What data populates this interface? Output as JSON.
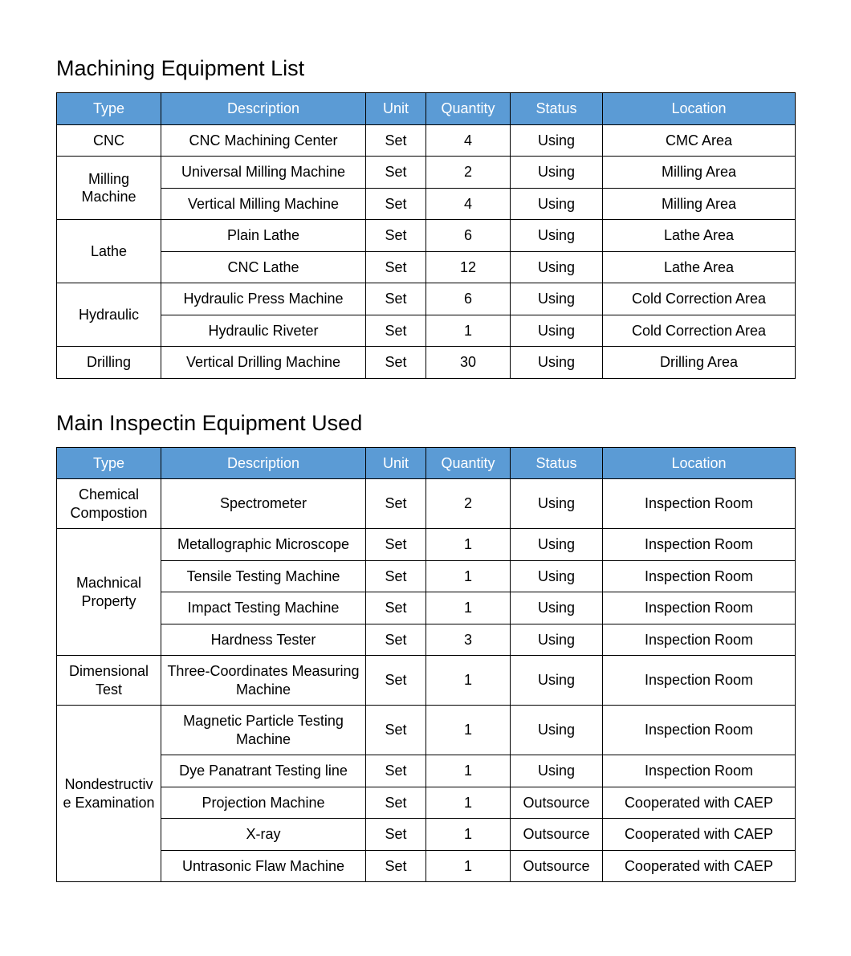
{
  "colors": {
    "header_bg": "#5b9bd5",
    "header_text": "#ffffff",
    "body_text": "#000000",
    "border": "#000000",
    "page_bg": "#ffffff"
  },
  "columns": [
    {
      "key": "type",
      "label": "Type"
    },
    {
      "key": "description",
      "label": "Description"
    },
    {
      "key": "unit",
      "label": "Unit"
    },
    {
      "key": "quantity",
      "label": "Quantity"
    },
    {
      "key": "status",
      "label": "Status"
    },
    {
      "key": "location",
      "label": "Location"
    }
  ],
  "sections": [
    {
      "title": "Machining Equipment List",
      "groups": [
        {
          "type": "CNC",
          "rows": [
            {
              "description": "CNC Machining Center",
              "unit": "Set",
              "quantity": "4",
              "status": "Using",
              "location": "CMC Area"
            }
          ]
        },
        {
          "type": "Milling Machine",
          "rows": [
            {
              "description": "Universal Milling Machine",
              "unit": "Set",
              "quantity": "2",
              "status": "Using",
              "location": "Milling Area"
            },
            {
              "description": "Vertical Milling Machine",
              "unit": "Set",
              "quantity": "4",
              "status": "Using",
              "location": "Milling Area"
            }
          ]
        },
        {
          "type": "Lathe",
          "rows": [
            {
              "description": "Plain Lathe",
              "unit": "Set",
              "quantity": "6",
              "status": "Using",
              "location": "Lathe Area"
            },
            {
              "description": "CNC Lathe",
              "unit": "Set",
              "quantity": "12",
              "status": "Using",
              "location": "Lathe Area"
            }
          ]
        },
        {
          "type": "Hydraulic",
          "rows": [
            {
              "description": "Hydraulic Press Machine",
              "unit": "Set",
              "quantity": "6",
              "status": "Using",
              "location": "Cold Correction Area"
            },
            {
              "description": "Hydraulic Riveter",
              "unit": "Set",
              "quantity": "1",
              "status": "Using",
              "location": "Cold Correction Area"
            }
          ]
        },
        {
          "type": "Drilling",
          "rows": [
            {
              "description": "Vertical Drilling Machine",
              "unit": "Set",
              "quantity": "30",
              "status": "Using",
              "location": "Drilling Area"
            }
          ]
        }
      ]
    },
    {
      "title": "Main Inspectin Equipment Used",
      "groups": [
        {
          "type": "Chemical Compostion",
          "rows": [
            {
              "description": "Spectrometer",
              "unit": "Set",
              "quantity": "2",
              "status": "Using",
              "location": "Inspection Room"
            }
          ]
        },
        {
          "type": "Machnical Property",
          "rows": [
            {
              "description": "Metallographic Microscope",
              "unit": "Set",
              "quantity": "1",
              "status": "Using",
              "location": "Inspection Room"
            },
            {
              "description": "Tensile Testing Machine",
              "unit": "Set",
              "quantity": "1",
              "status": "Using",
              "location": "Inspection Room"
            },
            {
              "description": "Impact Testing Machine",
              "unit": "Set",
              "quantity": "1",
              "status": "Using",
              "location": "Inspection Room"
            },
            {
              "description": "Hardness Tester",
              "unit": "Set",
              "quantity": "3",
              "status": "Using",
              "location": "Inspection Room"
            }
          ]
        },
        {
          "type": "Dimensional Test",
          "rows": [
            {
              "description": "Three-Coordinates Measuring Machine",
              "unit": "Set",
              "quantity": "1",
              "status": "Using",
              "location": "Inspection Room"
            }
          ]
        },
        {
          "type": "Nondestructive Examination",
          "rows": [
            {
              "description": "Magnetic Particle Testing Machine",
              "unit": "Set",
              "quantity": "1",
              "status": "Using",
              "location": "Inspection Room"
            },
            {
              "description": "Dye Panatrant Testing line",
              "unit": "Set",
              "quantity": "1",
              "status": "Using",
              "location": "Inspection Room"
            },
            {
              "description": "Projection Machine",
              "unit": "Set",
              "quantity": "1",
              "status": "Outsource",
              "location": "Cooperated with CAEP"
            },
            {
              "description": "X-ray",
              "unit": "Set",
              "quantity": "1",
              "status": "Outsource",
              "location": "Cooperated with CAEP"
            },
            {
              "description": "Untrasonic Flaw Machine",
              "unit": "Set",
              "quantity": "1",
              "status": "Outsource",
              "location": "Cooperated with CAEP"
            }
          ]
        }
      ]
    }
  ]
}
